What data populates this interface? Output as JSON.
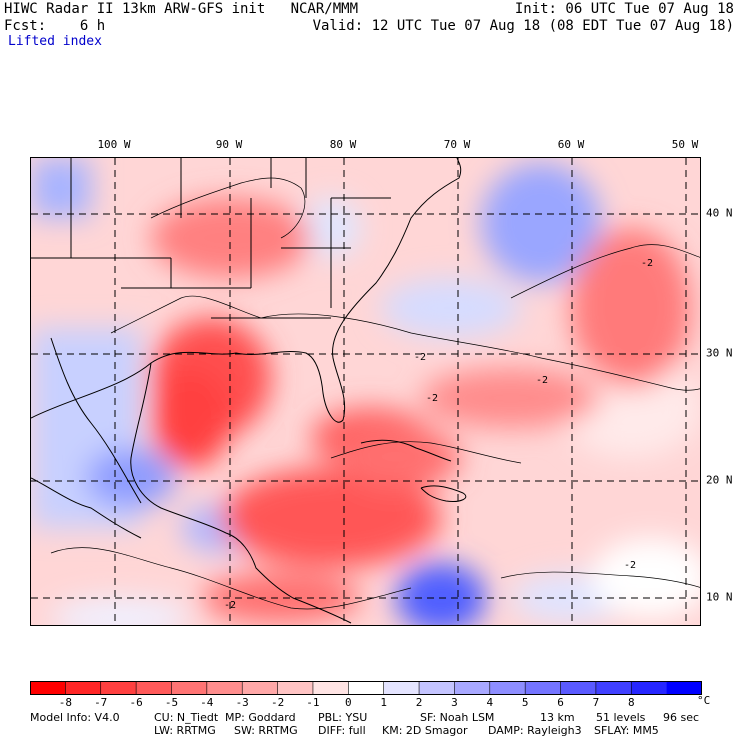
{
  "header": {
    "line1_left": "HIWC Radar II 13km ARW-GFS init   NCAR/MMM",
    "line1_right": "Init: 06 UTC Tue 07 Aug 18",
    "line2_left": "Fcst:    6 h",
    "line2_right": "Valid: 12 UTC Tue 07 Aug 18 (08 EDT Tue 07 Aug 18)",
    "field_name": "Lifted index"
  },
  "map": {
    "longitude_labels": [
      "100 W",
      "90 W",
      "80 W",
      "70 W",
      "60 W",
      "50 W"
    ],
    "latitude_labels": [
      "40 N",
      "30 N",
      "20 N",
      "10 N"
    ],
    "contour_labels": [
      "-2",
      "-2",
      "-2",
      "-2",
      "-2",
      "-2"
    ],
    "colors": {
      "strong_negative": "#ff2020",
      "weak_negative": "#ffc8c8",
      "neutral": "#ffffff",
      "weak_positive": "#c8c8ff",
      "strong_positive": "#2020ff"
    }
  },
  "colorbar": {
    "ticks": [
      "-8",
      "-7",
      "-6",
      "-5",
      "-4",
      "-3",
      "-2",
      "-1",
      "0",
      "1",
      "2",
      "3",
      "4",
      "5",
      "6",
      "7",
      "8"
    ],
    "unit": "°C",
    "colors": [
      "#ff0000",
      "#ff2626",
      "#ff4040",
      "#ff5a5a",
      "#ff7474",
      "#ff8e8e",
      "#ffa8a8",
      "#ffc4c4",
      "#ffe4e4",
      "#ffffff",
      "#e4e4ff",
      "#c4c4ff",
      "#a8a8ff",
      "#8e8eff",
      "#7474ff",
      "#5a5aff",
      "#4040ff",
      "#2626ff",
      "#0000ff"
    ]
  },
  "footer": {
    "model_info": "Model Info: V4.0",
    "cu": "CU: N_Tiedt",
    "mp": "MP: Goddard",
    "pbl": "PBL: YSU",
    "sf": "SF: Noah LSM",
    "res": "13 km",
    "levels": "51 levels",
    "dt": "96 sec",
    "lw": "LW: RRTMG",
    "sw": "SW: RRTMG",
    "diff": "DIFF: full",
    "km": "KM: 2D Smagor",
    "damp": "DAMP: Rayleigh3",
    "sflay": "SFLAY: MM5"
  }
}
